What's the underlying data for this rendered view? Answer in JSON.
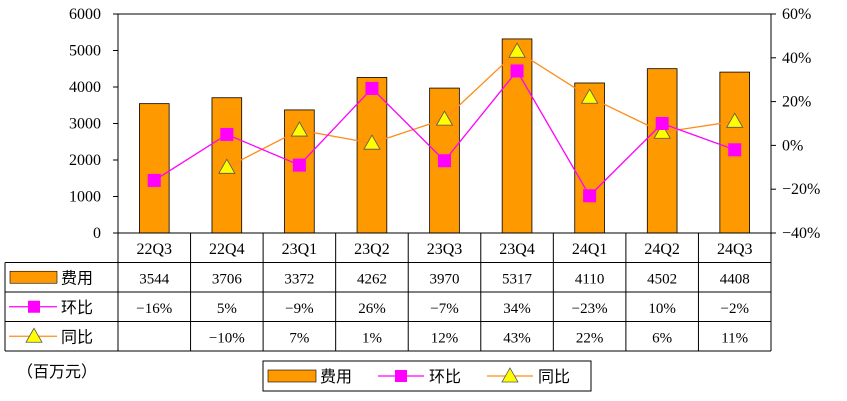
{
  "chart_data": {
    "type": "bar",
    "categories": [
      "22Q3",
      "22Q4",
      "23Q1",
      "23Q2",
      "23Q3",
      "23Q4",
      "24Q1",
      "24Q2",
      "24Q3"
    ],
    "series": [
      {
        "name": "费用",
        "kind": "bar",
        "axis": "left",
        "values": [
          3544,
          3706,
          3372,
          4262,
          3970,
          5317,
          4110,
          4502,
          4408
        ],
        "labels": [
          "3544",
          "3706",
          "3372",
          "4262",
          "3970",
          "5317",
          "4110",
          "4502",
          "4408"
        ],
        "color": "#FF9900"
      },
      {
        "name": "环比",
        "kind": "line",
        "axis": "right",
        "values": [
          -16,
          5,
          -9,
          26,
          -7,
          34,
          -23,
          10,
          -2
        ],
        "labels": [
          "−16%",
          "5%",
          "−9%",
          "26%",
          "−7%",
          "34%",
          "−23%",
          "10%",
          "−2%"
        ],
        "color": "#FF00FF",
        "marker": "square"
      },
      {
        "name": "同比",
        "kind": "line",
        "axis": "right",
        "values": [
          null,
          -10,
          7,
          1,
          12,
          43,
          22,
          6,
          11
        ],
        "labels": [
          "",
          "−10%",
          "7%",
          "1%",
          "12%",
          "43%",
          "22%",
          "6%",
          "11%"
        ],
        "color": "#FFFF00",
        "line_color": "#FF8C1A",
        "marker": "triangle"
      }
    ],
    "left_axis": {
      "ylim": [
        0,
        6000
      ],
      "ticks": [
        "0",
        "1000",
        "2000",
        "3000",
        "4000",
        "5000",
        "6000"
      ]
    },
    "right_axis": {
      "ylim": [
        -40,
        60
      ],
      "ticks": [
        "−40%",
        "−20%",
        "0%",
        "20%",
        "40%",
        "60%"
      ]
    },
    "legend": {
      "position": "bottom",
      "entries": [
        "费用",
        "环比",
        "同比"
      ]
    },
    "unit_label": "（百万元）",
    "data_table": true
  }
}
